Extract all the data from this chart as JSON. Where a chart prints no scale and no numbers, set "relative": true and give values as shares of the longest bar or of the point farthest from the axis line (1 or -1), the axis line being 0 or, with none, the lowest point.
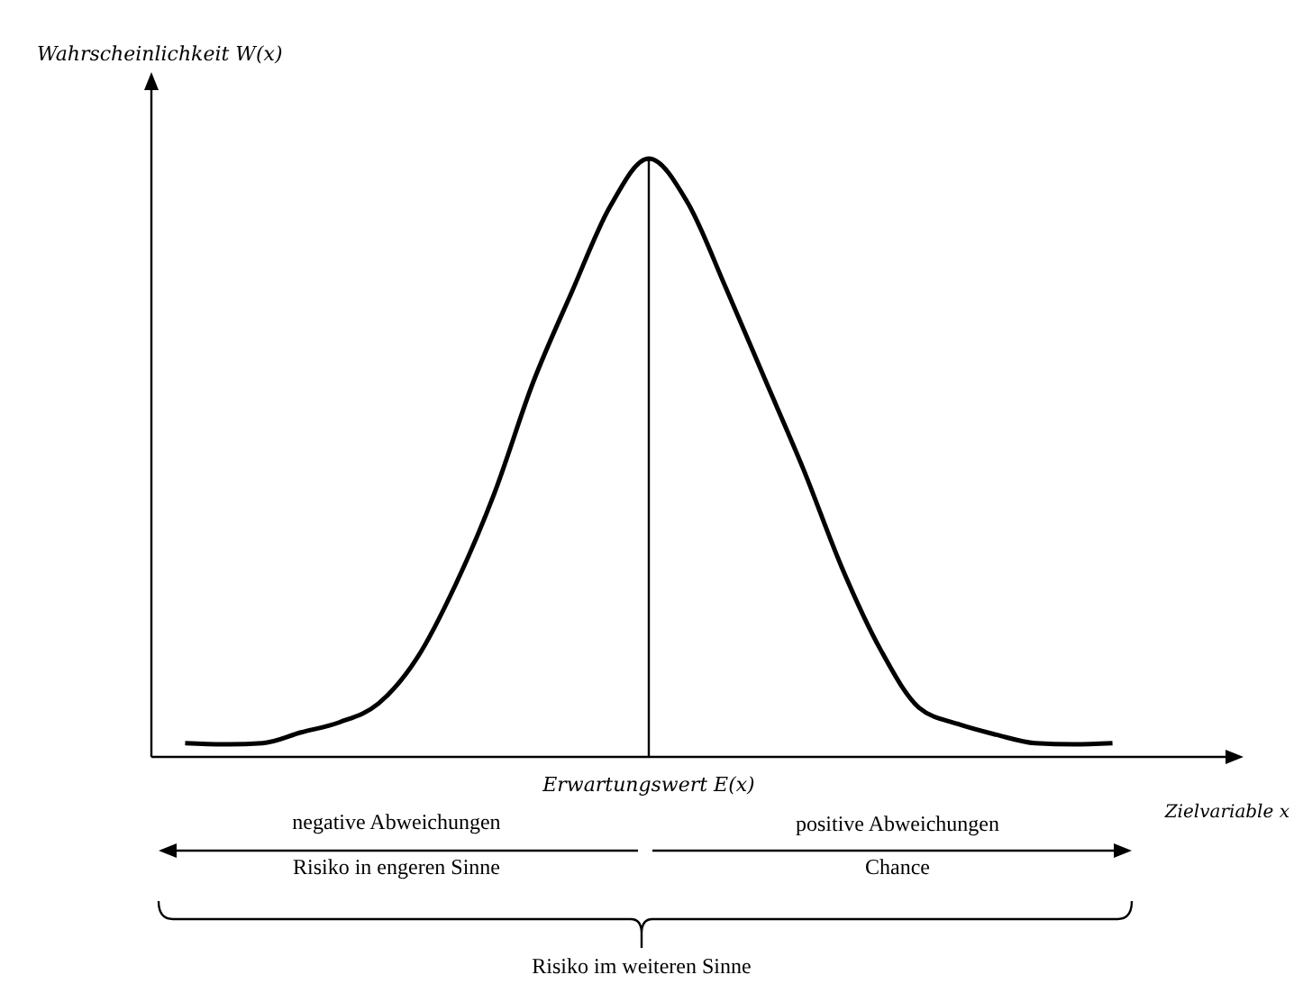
{
  "chart_data": {
    "type": "line",
    "relative": true,
    "xlabel": "Zielvariable x",
    "ylabel": "Wahrscheinlichkeit W(x)",
    "categories": [
      null,
      null,
      null,
      null,
      null,
      null,
      null,
      null,
      null,
      null,
      null,
      null,
      null,
      null,
      null,
      null,
      null,
      null,
      null,
      null,
      null,
      null,
      null,
      null,
      null
    ],
    "series": [
      {
        "color": "#000000",
        "values": [
          0.023,
          0.021,
          0.023,
          0.041,
          0.058,
          0.089,
          0.165,
          0.288,
          0.44,
          0.625,
          0.776,
          0.92,
          1.0,
          0.927,
          0.783,
          0.632,
          0.481,
          0.316,
          0.179,
          0.082,
          0.055,
          0.037,
          0.023,
          0.021,
          0.023
        ]
      }
    ],
    "ref_lines": [
      {
        "axis": "x",
        "value": "Erwartungswert E(x)"
      }
    ],
    "annotations": [
      "negative Abweichungen",
      "positive Abweichungen",
      "Risiko in engeren Sinne",
      "Chance",
      "Risiko im weiteren Sinne"
    ]
  }
}
